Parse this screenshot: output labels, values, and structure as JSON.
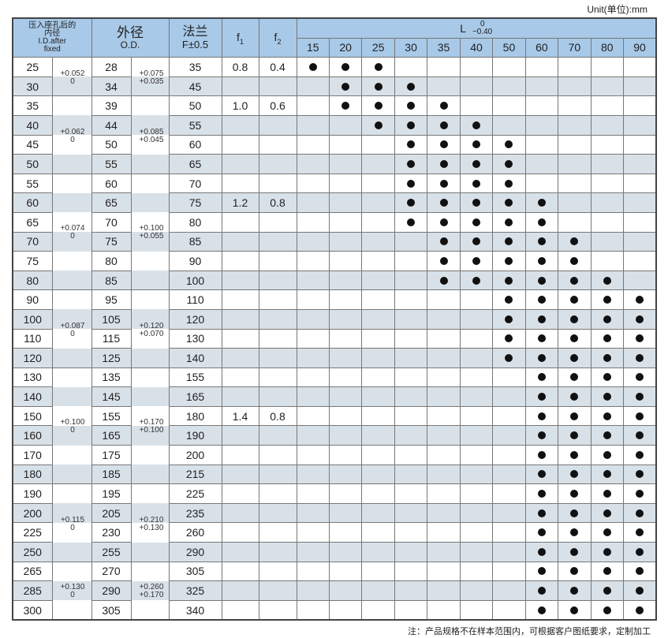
{
  "unit": "Unit(单位):mm",
  "header": {
    "id_cn": "压入座孔后的内径",
    "id_en": "I.D.after fixed",
    "od_cn": "外径",
    "od_en": "O.D.",
    "flange_cn": "法兰",
    "flange_en": "F±0.5",
    "f1": "f",
    "f1_sub": "1",
    "f2": "f",
    "f2_sub": "2",
    "l_label": "L",
    "l_upper": "0",
    "l_lower": "−0.40",
    "l_values": [
      "15",
      "20",
      "25",
      "30",
      "35",
      "40",
      "50",
      "60",
      "70",
      "80",
      "90"
    ]
  },
  "rows": [
    {
      "id": "25",
      "od": "28",
      "f": "35",
      "f1": "0.8",
      "f2": "0.4",
      "l": [
        "15",
        "20",
        "25"
      ]
    },
    {
      "id": "30",
      "od": "34",
      "f": "45",
      "f1": "",
      "f2": "",
      "l": [
        "20",
        "25",
        "30"
      ]
    },
    {
      "id": "35",
      "od": "39",
      "f": "50",
      "f1": "1.0",
      "f2": "0.6",
      "l": [
        "20",
        "25",
        "30",
        "35"
      ]
    },
    {
      "id": "40",
      "od": "44",
      "f": "55",
      "f1": "",
      "f2": "",
      "l": [
        "25",
        "30",
        "35",
        "40"
      ]
    },
    {
      "id": "45",
      "od": "50",
      "f": "60",
      "f1": "",
      "f2": "",
      "l": [
        "30",
        "35",
        "40",
        "50"
      ]
    },
    {
      "id": "50",
      "od": "55",
      "f": "65",
      "f1": "",
      "f2": "",
      "l": [
        "30",
        "35",
        "40",
        "50"
      ]
    },
    {
      "id": "55",
      "od": "60",
      "f": "70",
      "f1": "",
      "f2": "",
      "l": [
        "30",
        "35",
        "40",
        "50"
      ]
    },
    {
      "id": "60",
      "od": "65",
      "f": "75",
      "f1": "1.2",
      "f2": "0.8",
      "l": [
        "30",
        "35",
        "40",
        "50",
        "60"
      ]
    },
    {
      "id": "65",
      "od": "70",
      "f": "80",
      "f1": "",
      "f2": "",
      "l": [
        "30",
        "35",
        "40",
        "50",
        "60"
      ]
    },
    {
      "id": "70",
      "od": "75",
      "f": "85",
      "f1": "",
      "f2": "",
      "l": [
        "35",
        "40",
        "50",
        "60",
        "70"
      ]
    },
    {
      "id": "75",
      "od": "80",
      "f": "90",
      "f1": "",
      "f2": "",
      "l": [
        "35",
        "40",
        "50",
        "60",
        "70"
      ]
    },
    {
      "id": "80",
      "od": "85",
      "f": "100",
      "f1": "",
      "f2": "",
      "l": [
        "35",
        "40",
        "50",
        "60",
        "70",
        "80"
      ]
    },
    {
      "id": "90",
      "od": "95",
      "f": "110",
      "f1": "",
      "f2": "",
      "l": [
        "50",
        "60",
        "70",
        "80",
        "90"
      ]
    },
    {
      "id": "100",
      "od": "105",
      "f": "120",
      "f1": "",
      "f2": "",
      "l": [
        "50",
        "60",
        "70",
        "80",
        "90"
      ]
    },
    {
      "id": "110",
      "od": "115",
      "f": "130",
      "f1": "",
      "f2": "",
      "l": [
        "50",
        "60",
        "70",
        "80",
        "90"
      ]
    },
    {
      "id": "120",
      "od": "125",
      "f": "140",
      "f1": "",
      "f2": "",
      "l": [
        "50",
        "60",
        "70",
        "80",
        "90"
      ]
    },
    {
      "id": "130",
      "od": "135",
      "f": "155",
      "f1": "",
      "f2": "",
      "l": [
        "60",
        "70",
        "80",
        "90"
      ]
    },
    {
      "id": "140",
      "od": "145",
      "f": "165",
      "f1": "",
      "f2": "",
      "l": [
        "60",
        "70",
        "80",
        "90"
      ]
    },
    {
      "id": "150",
      "od": "155",
      "f": "180",
      "f1": "1.4",
      "f2": "0.8",
      "l": [
        "60",
        "70",
        "80",
        "90"
      ]
    },
    {
      "id": "160",
      "od": "165",
      "f": "190",
      "f1": "",
      "f2": "",
      "l": [
        "60",
        "70",
        "80",
        "90"
      ]
    },
    {
      "id": "170",
      "od": "175",
      "f": "200",
      "f1": "",
      "f2": "",
      "l": [
        "60",
        "70",
        "80",
        "90"
      ]
    },
    {
      "id": "180",
      "od": "185",
      "f": "215",
      "f1": "",
      "f2": "",
      "l": [
        "60",
        "70",
        "80",
        "90"
      ]
    },
    {
      "id": "190",
      "od": "195",
      "f": "225",
      "f1": "",
      "f2": "",
      "l": [
        "60",
        "70",
        "80",
        "90"
      ]
    },
    {
      "id": "200",
      "od": "205",
      "f": "235",
      "f1": "",
      "f2": "",
      "l": [
        "60",
        "70",
        "80",
        "90"
      ]
    },
    {
      "id": "225",
      "od": "230",
      "f": "260",
      "f1": "",
      "f2": "",
      "l": [
        "60",
        "70",
        "80",
        "90"
      ]
    },
    {
      "id": "250",
      "od": "255",
      "f": "290",
      "f1": "",
      "f2": "",
      "l": [
        "60",
        "70",
        "80",
        "90"
      ]
    },
    {
      "id": "265",
      "od": "270",
      "f": "305",
      "f1": "",
      "f2": "",
      "l": [
        "60",
        "70",
        "80",
        "90"
      ]
    },
    {
      "id": "285",
      "od": "290",
      "f": "325",
      "f1": "",
      "f2": "",
      "l": [
        "60",
        "70",
        "80",
        "90"
      ]
    },
    {
      "id": "300",
      "od": "305",
      "f": "340",
      "f1": "",
      "f2": "",
      "l": [
        "60",
        "70",
        "80",
        "90"
      ]
    }
  ],
  "tolerance_groups": [
    {
      "rows": [
        "25",
        "30"
      ],
      "id_upper": "+0.052",
      "id_lower": "0",
      "od_upper": "+0.075",
      "od_lower": "+0.035"
    },
    {
      "rows": [
        "35",
        "40",
        "45",
        "50"
      ],
      "id_upper": "+0.062",
      "id_lower": "0",
      "od_upper": "+0.085",
      "od_lower": "+0.045"
    },
    {
      "rows": [
        "55",
        "60",
        "65",
        "70",
        "75",
        "80"
      ],
      "id_upper": "+0.074",
      "id_lower": "0",
      "od_upper": "+0.100",
      "od_lower": "+0.055"
    },
    {
      "rows": [
        "90",
        "100",
        "110",
        "120"
      ],
      "id_upper": "+0.087",
      "id_lower": "0",
      "od_upper": "+0.120",
      "od_lower": "+0.070"
    },
    {
      "rows": [
        "130",
        "140",
        "150",
        "160",
        "170",
        "180"
      ],
      "id_upper": "+0.100",
      "id_lower": "0",
      "od_upper": "+0.170",
      "od_lower": "+0.100"
    },
    {
      "rows": [
        "190",
        "200",
        "225",
        "250"
      ],
      "id_upper": "+0.115",
      "id_lower": "0",
      "od_upper": "+0.210",
      "od_lower": "+0.130"
    },
    {
      "rows": [
        "265",
        "285",
        "300"
      ],
      "id_upper": "+0.130",
      "id_lower": "0",
      "od_upper": "+0.260",
      "od_lower": "+0.170"
    }
  ],
  "colors": {
    "header_bg": "#a8c9e8",
    "stripe": "#d9e1e8",
    "dot": "#111111"
  },
  "note": "注：产品规格不在样本范围内，可根据客户图纸要求，定制加工"
}
